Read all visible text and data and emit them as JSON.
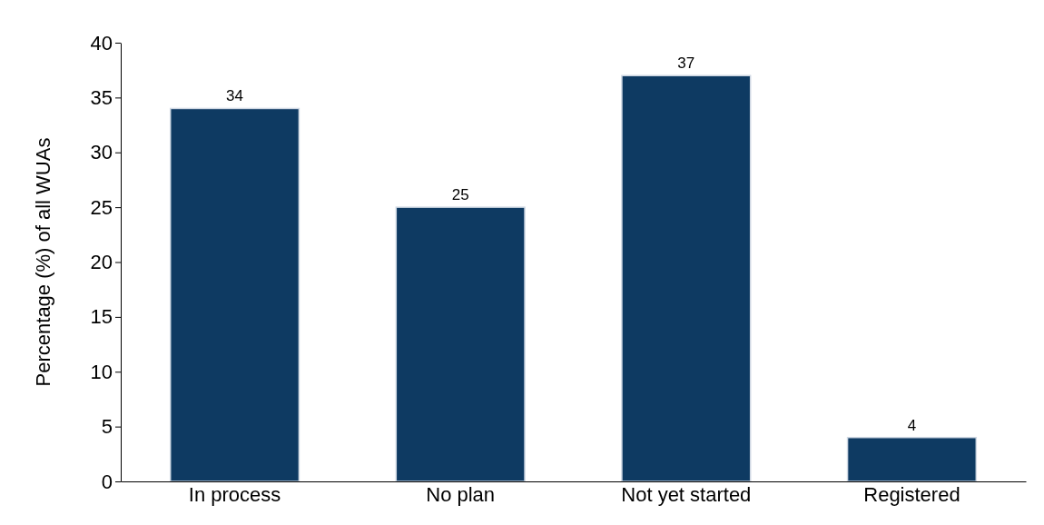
{
  "chart_data": {
    "type": "bar",
    "ylabel": "Percentage (%) of all WUAs",
    "categories": [
      "In process",
      "No plan",
      "Not yet started",
      "Registered"
    ],
    "values": [
      34,
      25,
      37,
      4
    ],
    "color": "#0e3a62",
    "ylim": [
      0,
      40
    ],
    "yticks": [
      0,
      5,
      10,
      15,
      20,
      25,
      30,
      35,
      40
    ],
    "grid": false,
    "data_labels": true
  }
}
